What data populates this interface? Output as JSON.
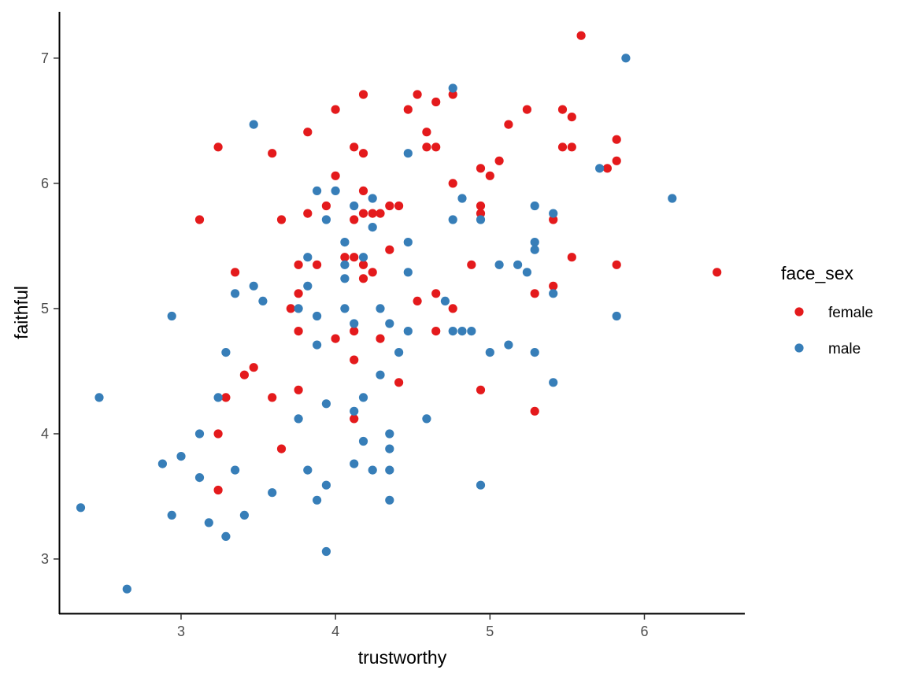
{
  "chart_data": {
    "type": "scatter",
    "xlabel": "trustworthy",
    "ylabel": "faithful",
    "xlim": [
      2.21,
      6.65
    ],
    "ylim": [
      2.56,
      7.37
    ],
    "x_ticks": [
      3,
      4,
      5,
      6
    ],
    "y_ticks": [
      3,
      4,
      5,
      6,
      7
    ],
    "grid": false,
    "legend": {
      "title": "face_sex",
      "position": "right"
    },
    "series": [
      {
        "name": "female",
        "color": "#E41A1C",
        "points": [
          [
            5.59,
            7.18
          ],
          [
            4.18,
            6.71
          ],
          [
            4.53,
            6.71
          ],
          [
            4.76,
            6.71
          ],
          [
            4.65,
            6.65
          ],
          [
            4.0,
            6.59
          ],
          [
            4.47,
            6.59
          ],
          [
            5.24,
            6.59
          ],
          [
            5.47,
            6.59
          ],
          [
            5.53,
            6.53
          ],
          [
            5.12,
            6.47
          ],
          [
            4.59,
            6.41
          ],
          [
            3.82,
            6.41
          ],
          [
            5.82,
            6.35
          ],
          [
            3.24,
            6.29
          ],
          [
            4.12,
            6.29
          ],
          [
            4.59,
            6.29
          ],
          [
            4.65,
            6.29
          ],
          [
            5.47,
            6.29
          ],
          [
            5.53,
            6.29
          ],
          [
            3.59,
            6.24
          ],
          [
            4.18,
            6.24
          ],
          [
            5.06,
            6.18
          ],
          [
            5.82,
            6.18
          ],
          [
            4.94,
            6.12
          ],
          [
            5.76,
            6.12
          ],
          [
            4.0,
            6.06
          ],
          [
            5.0,
            6.06
          ],
          [
            4.76,
            6.0
          ],
          [
            4.18,
            5.94
          ],
          [
            3.94,
            5.82
          ],
          [
            4.35,
            5.82
          ],
          [
            4.41,
            5.82
          ],
          [
            4.94,
            5.82
          ],
          [
            3.82,
            5.76
          ],
          [
            4.18,
            5.76
          ],
          [
            4.24,
            5.76
          ],
          [
            4.29,
            5.76
          ],
          [
            4.94,
            5.76
          ],
          [
            3.12,
            5.71
          ],
          [
            3.65,
            5.71
          ],
          [
            4.12,
            5.71
          ],
          [
            5.41,
            5.71
          ],
          [
            4.35,
            5.47
          ],
          [
            4.06,
            5.41
          ],
          [
            4.12,
            5.41
          ],
          [
            5.53,
            5.41
          ],
          [
            3.76,
            5.35
          ],
          [
            3.88,
            5.35
          ],
          [
            4.18,
            5.35
          ],
          [
            4.88,
            5.35
          ],
          [
            5.82,
            5.35
          ],
          [
            3.35,
            5.29
          ],
          [
            4.24,
            5.29
          ],
          [
            6.47,
            5.29
          ],
          [
            4.18,
            5.24
          ],
          [
            5.41,
            5.18
          ],
          [
            3.76,
            5.12
          ],
          [
            4.65,
            5.12
          ],
          [
            5.29,
            5.12
          ],
          [
            4.53,
            5.06
          ],
          [
            3.71,
            5.0
          ],
          [
            4.76,
            5.0
          ],
          [
            3.76,
            4.82
          ],
          [
            4.12,
            4.82
          ],
          [
            4.65,
            4.82
          ],
          [
            4.0,
            4.76
          ],
          [
            4.29,
            4.76
          ],
          [
            4.12,
            4.59
          ],
          [
            3.47,
            4.53
          ],
          [
            3.41,
            4.47
          ],
          [
            4.41,
            4.41
          ],
          [
            3.76,
            4.35
          ],
          [
            4.94,
            4.35
          ],
          [
            3.29,
            4.29
          ],
          [
            3.59,
            4.29
          ],
          [
            5.29,
            4.18
          ],
          [
            4.12,
            4.12
          ],
          [
            3.24,
            4.0
          ],
          [
            3.65,
            3.88
          ],
          [
            3.24,
            3.55
          ]
        ]
      },
      {
        "name": "male",
        "color": "#377EB8",
        "points": [
          [
            5.88,
            7.0
          ],
          [
            4.76,
            6.76
          ],
          [
            3.47,
            6.47
          ],
          [
            4.47,
            6.24
          ],
          [
            5.71,
            6.12
          ],
          [
            3.88,
            5.94
          ],
          [
            4.0,
            5.94
          ],
          [
            4.24,
            5.88
          ],
          [
            4.82,
            5.88
          ],
          [
            6.18,
            5.88
          ],
          [
            4.12,
            5.82
          ],
          [
            5.29,
            5.82
          ],
          [
            5.41,
            5.76
          ],
          [
            3.94,
            5.71
          ],
          [
            4.76,
            5.71
          ],
          [
            4.94,
            5.71
          ],
          [
            4.24,
            5.65
          ],
          [
            4.06,
            5.53
          ],
          [
            4.47,
            5.53
          ],
          [
            5.29,
            5.53
          ],
          [
            5.29,
            5.47
          ],
          [
            3.82,
            5.41
          ],
          [
            4.18,
            5.41
          ],
          [
            4.06,
            5.35
          ],
          [
            5.06,
            5.35
          ],
          [
            5.18,
            5.35
          ],
          [
            4.47,
            5.29
          ],
          [
            5.24,
            5.29
          ],
          [
            4.06,
            5.24
          ],
          [
            3.47,
            5.18
          ],
          [
            3.82,
            5.18
          ],
          [
            3.35,
            5.12
          ],
          [
            5.41,
            5.12
          ],
          [
            3.53,
            5.06
          ],
          [
            4.71,
            5.06
          ],
          [
            3.76,
            5.0
          ],
          [
            4.06,
            5.0
          ],
          [
            4.29,
            5.0
          ],
          [
            2.94,
            4.94
          ],
          [
            3.88,
            4.94
          ],
          [
            5.82,
            4.94
          ],
          [
            4.12,
            4.88
          ],
          [
            4.35,
            4.88
          ],
          [
            4.47,
            4.82
          ],
          [
            4.76,
            4.82
          ],
          [
            4.82,
            4.82
          ],
          [
            4.88,
            4.82
          ],
          [
            3.88,
            4.71
          ],
          [
            5.12,
            4.71
          ],
          [
            3.29,
            4.65
          ],
          [
            4.41,
            4.65
          ],
          [
            5.0,
            4.65
          ],
          [
            5.29,
            4.65
          ],
          [
            4.29,
            4.47
          ],
          [
            5.41,
            4.41
          ],
          [
            2.47,
            4.29
          ],
          [
            3.24,
            4.29
          ],
          [
            4.18,
            4.29
          ],
          [
            3.94,
            4.24
          ],
          [
            4.12,
            4.18
          ],
          [
            3.76,
            4.12
          ],
          [
            4.59,
            4.12
          ],
          [
            3.12,
            4.0
          ],
          [
            4.35,
            4.0
          ],
          [
            4.18,
            3.94
          ],
          [
            4.35,
            3.88
          ],
          [
            3.0,
            3.82
          ],
          [
            2.88,
            3.76
          ],
          [
            4.12,
            3.76
          ],
          [
            3.35,
            3.71
          ],
          [
            3.82,
            3.71
          ],
          [
            4.24,
            3.71
          ],
          [
            4.35,
            3.71
          ],
          [
            3.12,
            3.65
          ],
          [
            3.94,
            3.59
          ],
          [
            4.94,
            3.59
          ],
          [
            3.59,
            3.53
          ],
          [
            3.88,
            3.47
          ],
          [
            4.35,
            3.47
          ],
          [
            2.35,
            3.41
          ],
          [
            2.94,
            3.35
          ],
          [
            3.41,
            3.35
          ],
          [
            3.18,
            3.29
          ],
          [
            3.29,
            3.18
          ],
          [
            3.94,
            3.06
          ],
          [
            2.65,
            2.76
          ]
        ]
      }
    ]
  }
}
